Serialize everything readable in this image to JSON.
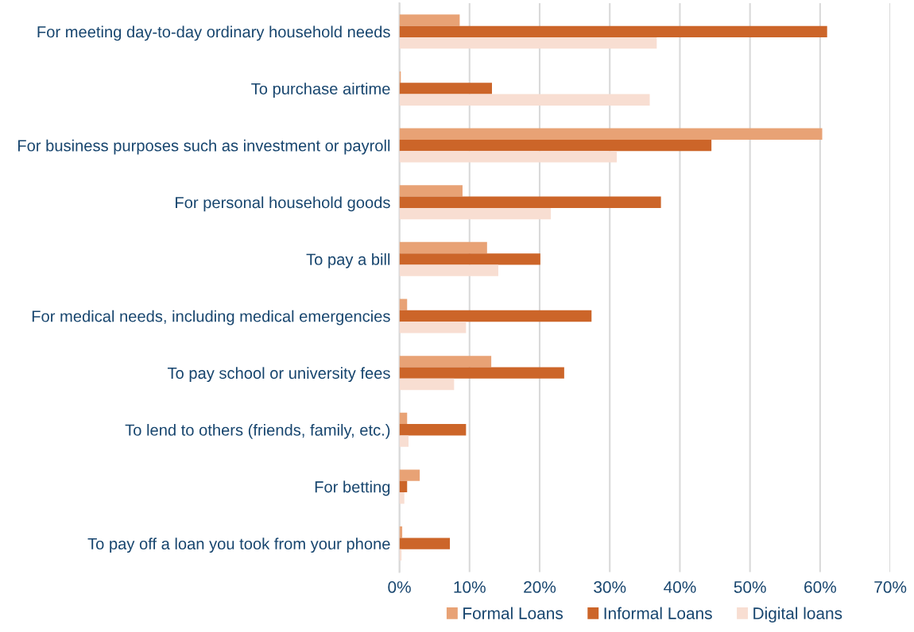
{
  "chart_data": {
    "type": "bar",
    "orientation": "horizontal",
    "categories": [
      "For meeting day-to-day ordinary household needs",
      "To purchase airtime",
      "For business purposes such as investment or payroll",
      "For personal household goods",
      "To pay a bill",
      "For medical needs, including medical emergencies",
      "To pay school or university fees",
      "To lend to others (friends, family, etc.)",
      "For betting",
      "To pay off a loan you took from your phone"
    ],
    "series": [
      {
        "name": "Formal Loans",
        "color": "#e8a275",
        "values": [
          8.6,
          0.2,
          60.3,
          9.0,
          12.5,
          1.1,
          13.1,
          1.1,
          2.9,
          0.4
        ]
      },
      {
        "name": "Informal Loans",
        "color": "#cc6529",
        "values": [
          61.0,
          13.2,
          44.5,
          37.3,
          20.1,
          27.4,
          23.5,
          9.5,
          1.1,
          7.2
        ]
      },
      {
        "name": "Digital loans",
        "color": "#f8ded2",
        "values": [
          36.7,
          35.7,
          31.0,
          21.6,
          14.1,
          9.5,
          7.8,
          1.3,
          0.7,
          0.3
        ]
      }
    ],
    "xlim": [
      0,
      70
    ],
    "xticks": [
      {
        "value": 0,
        "label": "0%"
      },
      {
        "value": 10,
        "label": "10%"
      },
      {
        "value": 20,
        "label": "20%"
      },
      {
        "value": 30,
        "label": "30%"
      },
      {
        "value": 40,
        "label": "40%"
      },
      {
        "value": 50,
        "label": "50%"
      },
      {
        "value": 60,
        "label": "60%"
      },
      {
        "value": 70,
        "label": "70%"
      }
    ],
    "grid": "x",
    "legend": "bottom"
  }
}
